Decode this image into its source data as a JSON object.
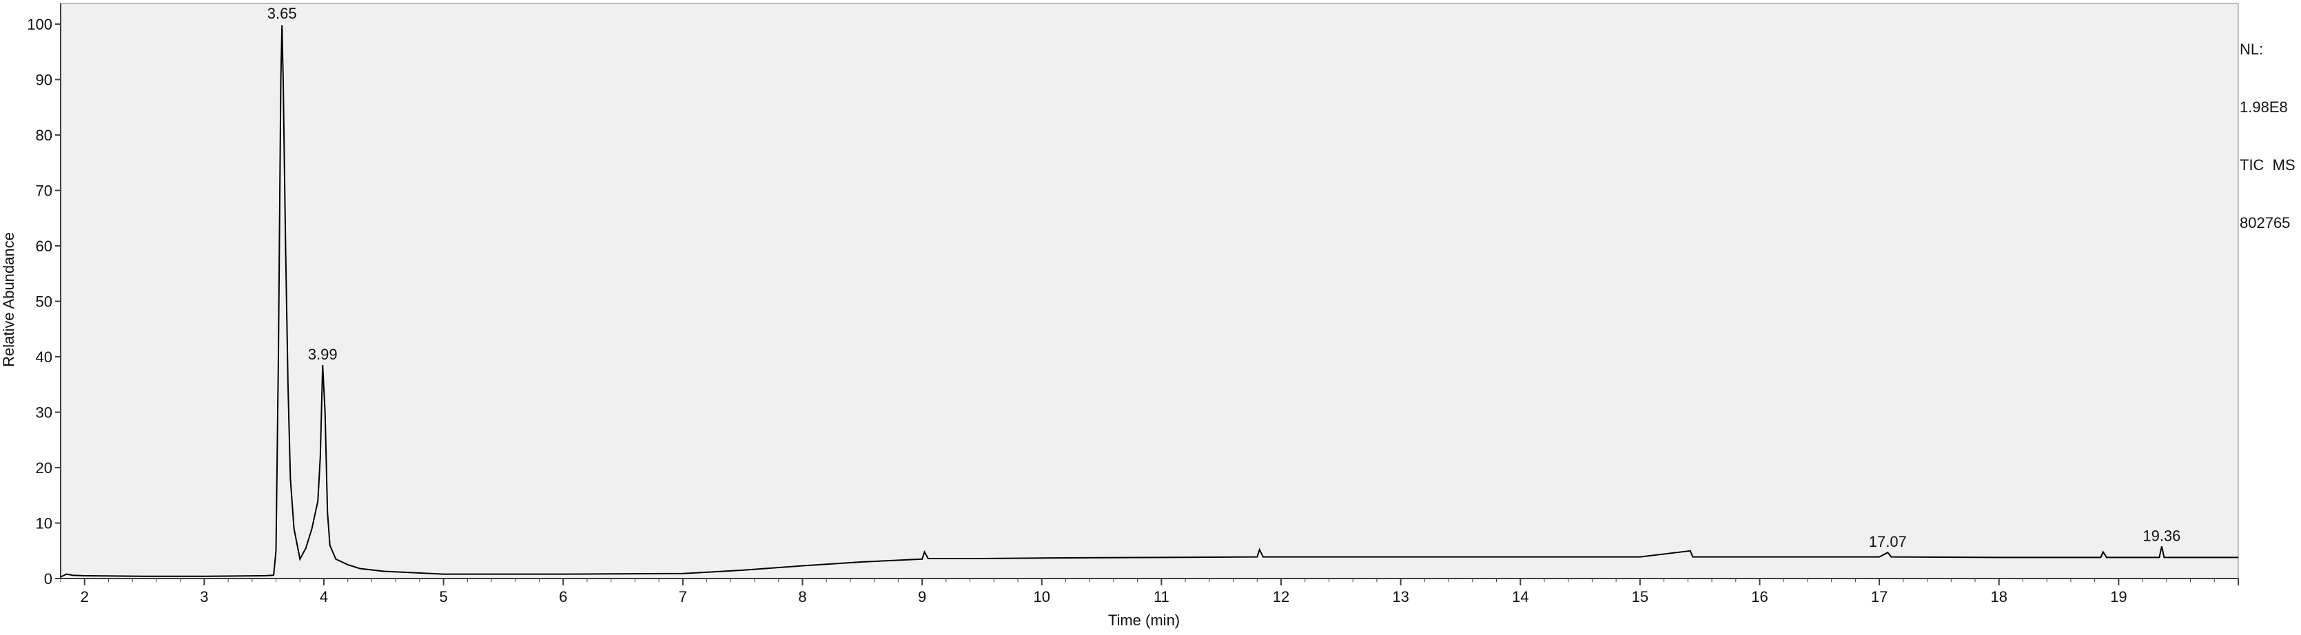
{
  "chart_data": {
    "type": "line",
    "xlabel": "Time (min)",
    "ylabel": "Relative Abundance",
    "xlim": [
      1.8,
      20.0
    ],
    "ylim": [
      0,
      100
    ],
    "x_ticks": [
      2,
      3,
      4,
      5,
      6,
      7,
      8,
      9,
      10,
      11,
      12,
      13,
      14,
      15,
      16,
      17,
      18,
      19
    ],
    "y_ticks": [
      0,
      10,
      20,
      30,
      40,
      50,
      60,
      70,
      80,
      90,
      100
    ],
    "peak_labels": [
      {
        "label": "3.65",
        "x": 3.65,
        "y": 100
      },
      {
        "label": "3.99",
        "x": 3.99,
        "y": 38.5
      },
      {
        "label": "17.07",
        "x": 17.07,
        "y": 4.7
      },
      {
        "label": "19.36",
        "x": 19.36,
        "y": 5.8
      }
    ],
    "series": [
      {
        "x": [
          1.8,
          1.85,
          1.9,
          2.0,
          2.5,
          3.0,
          3.5,
          3.58,
          3.6,
          3.62,
          3.64,
          3.65,
          3.66,
          3.68,
          3.7,
          3.72,
          3.75,
          3.8,
          3.85,
          3.9,
          3.95,
          3.97,
          3.99,
          4.01,
          4.03,
          4.05,
          4.1,
          4.2,
          4.3,
          4.5,
          5.0,
          6.0,
          7.0,
          7.5,
          8.0,
          8.5,
          9.0,
          9.02,
          9.05,
          9.5,
          10.0,
          11.0,
          11.8,
          11.82,
          11.85,
          12.0,
          13.0,
          14.0,
          15.0,
          15.42,
          15.44,
          15.46,
          16.0,
          17.0,
          17.07,
          17.1,
          18.0,
          18.85,
          18.87,
          18.9,
          19.0,
          19.34,
          19.36,
          19.38,
          19.5,
          20.0
        ],
        "y": [
          0.3,
          0.8,
          0.6,
          0.5,
          0.4,
          0.4,
          0.5,
          0.6,
          5.0,
          40.0,
          90.0,
          99.8,
          90.0,
          60.0,
          35.0,
          18.0,
          9.0,
          3.5,
          5.5,
          9.0,
          14.0,
          22.0,
          38.5,
          30.0,
          12.0,
          6.0,
          3.5,
          2.5,
          1.8,
          1.3,
          0.8,
          0.8,
          0.9,
          1.5,
          2.3,
          3.0,
          3.5,
          4.8,
          3.6,
          3.6,
          3.7,
          3.8,
          3.9,
          5.2,
          3.9,
          3.9,
          3.9,
          3.9,
          3.9,
          5.0,
          3.9,
          3.9,
          3.9,
          3.9,
          4.7,
          3.9,
          3.8,
          3.8,
          4.8,
          3.8,
          3.8,
          3.8,
          5.8,
          3.8,
          3.8,
          3.8
        ]
      }
    ]
  },
  "nl_lines": [
    "NL:",
    "1.98E8",
    "TIC  MS",
    "802765"
  ],
  "colors": {
    "plot_bg": "#f0f0f0",
    "line": "#000000",
    "axis": "#404040"
  }
}
